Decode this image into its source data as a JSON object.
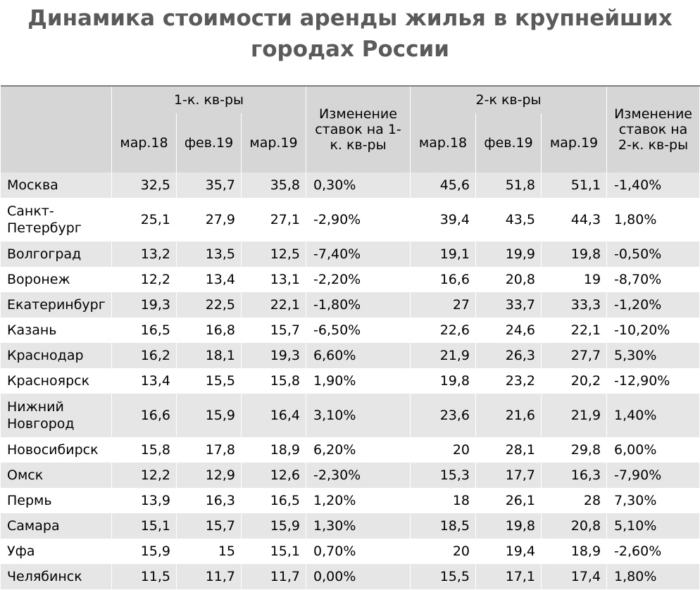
{
  "title": "Динамика стоимости аренды жилья в крупнейших городах России",
  "header": {
    "group1": "1-к. кв-ры",
    "group2": "2-к кв-ры",
    "periods1": [
      "мар.18",
      "фев.19",
      "мар.19"
    ],
    "periods2": [
      "мар.18",
      "фев.19",
      "мар.19"
    ],
    "change1": "Изменение ставок на 1-к. кв-ры",
    "change2": "Изменение ставок на 2-к. кв-ры"
  },
  "rows": [
    [
      "Москва",
      "32,5",
      "35,7",
      "35,8",
      "0,30%",
      "45,6",
      "51,8",
      "51,1",
      "-1,40%"
    ],
    [
      "Санкт-Петербург",
      "25,1",
      "27,9",
      "27,1",
      "-2,90%",
      "39,4",
      "43,5",
      "44,3",
      "1,80%"
    ],
    [
      "Волгоград",
      "13,2",
      "13,5",
      "12,5",
      "-7,40%",
      "19,1",
      "19,9",
      "19,8",
      "-0,50%"
    ],
    [
      "Воронеж",
      "12,2",
      "13,4",
      "13,1",
      "-2,20%",
      "16,6",
      "20,8",
      "19",
      "-8,70%"
    ],
    [
      "Екатеринбург",
      "19,3",
      "22,5",
      "22,1",
      "-1,80%",
      "27",
      "33,7",
      "33,3",
      "-1,20%"
    ],
    [
      "Казань",
      "16,5",
      "16,8",
      "15,7",
      "-6,50%",
      "22,6",
      "24,6",
      "22,1",
      "-10,20%"
    ],
    [
      "Краснодар",
      "16,2",
      "18,1",
      "19,3",
      "6,60%",
      "21,9",
      "26,3",
      "27,7",
      "5,30%"
    ],
    [
      "Красноярск",
      "13,4",
      "15,5",
      "15,8",
      "1,90%",
      "19,8",
      "23,2",
      "20,2",
      "-12,90%"
    ],
    [
      "Нижний Новгород",
      "16,6",
      "15,9",
      "16,4",
      "3,10%",
      "23,6",
      "21,6",
      "21,9",
      "1,40%"
    ],
    [
      "Новосибирск",
      "15,8",
      "17,8",
      "18,9",
      "6,20%",
      "20",
      "28,1",
      "29,8",
      "6,00%"
    ],
    [
      "Омск",
      "12,2",
      "12,9",
      "12,6",
      "-2,30%",
      "15,3",
      "17,7",
      "16,3",
      "-7,90%"
    ],
    [
      "Пермь",
      "13,9",
      "16,3",
      "16,5",
      "1,20%",
      "18",
      "26,1",
      "28",
      "7,30%"
    ],
    [
      "Самара",
      "15,1",
      "15,7",
      "15,9",
      "1,30%",
      "18,5",
      "19,8",
      "20,8",
      "5,10%"
    ],
    [
      "Уфа",
      "15,9",
      "15",
      "15,1",
      "0,70%",
      "20",
      "19,4",
      "18,9",
      "-2,60%"
    ],
    [
      "Челябинск",
      "11,5",
      "11,7",
      "11,7",
      "0,00%",
      "15,5",
      "17,1",
      "17,4",
      "1,80%"
    ]
  ]
}
